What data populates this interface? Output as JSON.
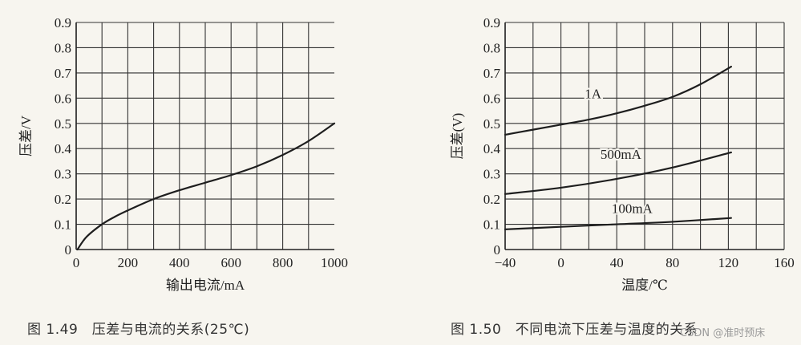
{
  "chart_data": [
    {
      "type": "line",
      "caption": "图 1.49　压差与电流的关系(25℃)",
      "xlabel": "输出电流/mA",
      "ylabel": "压差/V",
      "xlim": [
        0,
        1000
      ],
      "ylim": [
        0,
        0.9
      ],
      "xticks": [
        "0",
        "200",
        "400",
        "600",
        "800",
        "1000"
      ],
      "yticks": [
        "0",
        "0.1",
        "0.2",
        "0.3",
        "0.4",
        "0.5",
        "0.6",
        "0.7",
        "0.8",
        "0.9"
      ],
      "grid": true,
      "series": [
        {
          "label": "",
          "x": [
            5,
            40,
            100,
            150,
            200,
            300,
            400,
            500,
            600,
            700,
            800,
            900,
            1000
          ],
          "y": [
            0.0,
            0.05,
            0.1,
            0.13,
            0.155,
            0.2,
            0.235,
            0.265,
            0.295,
            0.33,
            0.375,
            0.43,
            0.5
          ]
        }
      ]
    },
    {
      "type": "line",
      "caption": "图 1.50　不同电流下压差与温度的关系",
      "xlabel": "温度/℃",
      "ylabel": "压差(V)",
      "xlim": [
        -40,
        160
      ],
      "ylim": [
        0,
        0.9
      ],
      "xticks": [
        "−40",
        "0",
        "40",
        "80",
        "120",
        "160"
      ],
      "yticks": [
        "0",
        "0.1",
        "0.2",
        "0.3",
        "0.4",
        "0.5",
        "0.6",
        "0.7",
        "0.8",
        "0.9"
      ],
      "grid": true,
      "series": [
        {
          "label": "1A",
          "x": [
            -40,
            -20,
            0,
            20,
            40,
            60,
            80,
            100,
            122
          ],
          "y": [
            0.455,
            0.475,
            0.495,
            0.515,
            0.54,
            0.57,
            0.605,
            0.655,
            0.725
          ]
        },
        {
          "label": "500mA",
          "x": [
            -40,
            0,
            40,
            80,
            122
          ],
          "y": [
            0.22,
            0.245,
            0.28,
            0.325,
            0.385
          ]
        },
        {
          "label": "100mA",
          "x": [
            -40,
            0,
            40,
            80,
            122
          ],
          "y": [
            0.08,
            0.09,
            0.1,
            0.11,
            0.125
          ]
        }
      ]
    }
  ],
  "watermark": "CSDN @准时预床"
}
